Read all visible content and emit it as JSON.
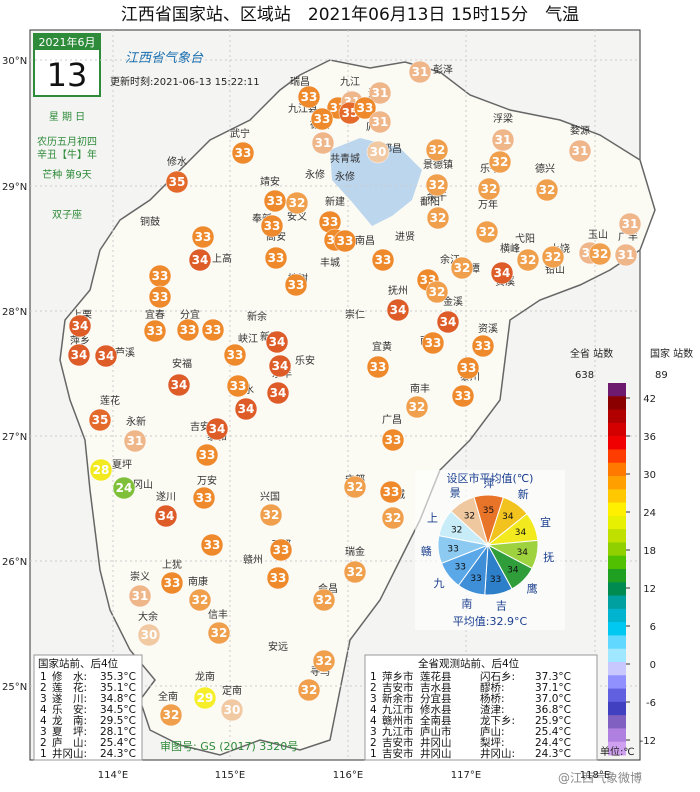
{
  "header": {
    "title": "江西省国家站、区域站　2021年06月13日 15时15分　气温"
  },
  "calendar": {
    "month": "2021年6月",
    "day": "13",
    "weekday": "星 期 日",
    "lunar": "农历五月初四",
    "lunar_year": "辛丑【牛】年",
    "solar_term": "芒种 第9天",
    "zodiac": "双子座"
  },
  "logo": {
    "name": "江西省气象台",
    "update": "更新时刻:2021-06-13 15:22:11"
  },
  "lat_labels": [
    "30°N",
    "29°N",
    "28°N",
    "27°N",
    "26°N",
    "25°N"
  ],
  "lon_labels": [
    "114°E",
    "115°E",
    "116°E",
    "117°E",
    "118°E"
  ],
  "marker_colors": [
    {
      "value": 24,
      "color": "#7fbf3a"
    },
    {
      "value": 25,
      "color": "#8cc63f"
    },
    {
      "value": 28,
      "color": "#f2ea1e"
    },
    {
      "value": 29,
      "color": "#f5ee28"
    },
    {
      "value": 30,
      "color": "#f1c9a2"
    },
    {
      "value": 31,
      "color": "#efb68a"
    },
    {
      "value": 32,
      "color": "#f0a04c"
    },
    {
      "value": 33,
      "color": "#ef8a2c"
    },
    {
      "value": 34,
      "color": "#de5c28"
    },
    {
      "value": 35,
      "color": "#e46a2c"
    }
  ],
  "stations": [
    31,
    31,
    33,
    33,
    31,
    35,
    33,
    33,
    31,
    31,
    30,
    33,
    32,
    31,
    32,
    31,
    35,
    32,
    32,
    32,
    33,
    32,
    33,
    33,
    32,
    31,
    33,
    33,
    32,
    33,
    33,
    33,
    33,
    32,
    34,
    32,
    32,
    31,
    32,
    31,
    34,
    33,
    33,
    33,
    32,
    34,
    34,
    33,
    33,
    33,
    34,
    33,
    34,
    33,
    34,
    34,
    33,
    34,
    33,
    34,
    33,
    33,
    34,
    33,
    32,
    34,
    35,
    34,
    33,
    33,
    31,
    28,
    24,
    33,
    32,
    33,
    34,
    32,
    32,
    33,
    33,
    33,
    32,
    33,
    31,
    32,
    32,
    30,
    32,
    32,
    32,
    29,
    32,
    30
  ],
  "places": [
    "彭泽",
    "湖口",
    "九江",
    "九江县",
    "瑞昌",
    "德安",
    "庐山",
    "都昌",
    "共青城",
    "星子",
    "修水",
    "武宁",
    "永修",
    "浮梁",
    "景德镇",
    "婺源",
    "鄱阳",
    "乐平",
    "万年",
    "德兴",
    "玉山",
    "上饶",
    "广丰",
    "铅山",
    "横峰",
    "弋阳",
    "贵溪",
    "余江",
    "鹰潭",
    "余干",
    "进贤",
    "南昌",
    "新建",
    "安义",
    "靖安",
    "奉新",
    "高安",
    "宜丰",
    "铜鼓",
    "万载",
    "上高",
    "丰城",
    "樟树",
    "新余",
    "分宜",
    "宜春",
    "萍乡",
    "芦溪",
    "上栗",
    "莲花",
    "安福",
    "吉安",
    "吉水",
    "永丰",
    "新干",
    "峡江",
    "乐安",
    "宜黄",
    "崇仁",
    "抚州",
    "金溪",
    "资溪",
    "黎川",
    "南城",
    "南丰",
    "广昌",
    "永新",
    "井冈山",
    "泰和",
    "遂川",
    "万安",
    "兴国",
    "宁都",
    "石城",
    "瑞金",
    "于都",
    "赣州",
    "上犹",
    "南康",
    "崇义",
    "大余",
    "信丰",
    "安远",
    "会昌",
    "寻乌",
    "定南",
    "龙南",
    "全南",
    "夏坪",
    "永修"
  ],
  "pie": {
    "title": "设区市平均值(℃)",
    "average": "平均值:32.9°C",
    "slices": [
      {
        "name": "萍",
        "value": 35,
        "color": "#e8742a"
      },
      {
        "name": "新",
        "value": 34,
        "color": "#f2c21e"
      },
      {
        "name": "宜",
        "value": 34,
        "color": "#f2ea1e"
      },
      {
        "name": "抚",
        "value": 34,
        "color": "#9fd23f"
      },
      {
        "name": "鹰",
        "value": 34,
        "color": "#2f9e3a"
      },
      {
        "name": "吉",
        "value": 33,
        "color": "#2c7fc8"
      },
      {
        "name": "南",
        "value": 33,
        "color": "#3f8fd8"
      },
      {
        "name": "九",
        "value": 33,
        "color": "#5aa8e8"
      },
      {
        "name": "赣",
        "value": 33,
        "color": "#8ccaf2"
      },
      {
        "name": "上",
        "value": 32,
        "color": "#c8ecf8"
      },
      {
        "name": "景",
        "value": 32,
        "color": "#f0c8a0"
      }
    ]
  },
  "colorbar": {
    "header_all": "全省\n站数",
    "count_all": "638",
    "header_nat": "国家\n站数",
    "count_nat": "89",
    "unit": "单位:℃",
    "ticks": [
      42,
      36,
      30,
      24,
      18,
      12,
      6,
      0,
      -6,
      -12
    ],
    "colors": [
      "#6e1a6e",
      "#8a0000",
      "#b00000",
      "#d40000",
      "#f00000",
      "#ff3c00",
      "#ff7800",
      "#ffa000",
      "#ffc800",
      "#fff000",
      "#e6f000",
      "#c0e000",
      "#90d000",
      "#50c000",
      "#20a020",
      "#008c50",
      "#00a0a0",
      "#00b4d0",
      "#00c8f0",
      "#60d8ff",
      "#a0e8ff",
      "#c8c8ff",
      "#9090ff",
      "#6060e0",
      "#4040c0",
      "#8060c0",
      "#b080e0",
      "#d0a0f0"
    ]
  },
  "national_rank": {
    "title": "国家站前、后4位",
    "rows": [
      [
        "1",
        "修　水:",
        "35.3°C"
      ],
      [
        "2",
        "莲　花:",
        "35.1°C"
      ],
      [
        "3",
        "遂　川:",
        "34.8°C"
      ],
      [
        "4",
        "乐　安:",
        "34.5°C"
      ],
      [
        "4",
        "龙　南:",
        "29.5°C"
      ],
      [
        "3",
        "夏　坪:",
        "28.1°C"
      ],
      [
        "2",
        "庐　山:",
        "25.4°C"
      ],
      [
        "1",
        "井冈山:",
        "24.3°C"
      ]
    ]
  },
  "province_rank": {
    "title": "全省观测站前、后4位",
    "rows": [
      [
        "1",
        "萍乡市",
        "莲花县",
        "闪石乡:",
        "37.3°C"
      ],
      [
        "2",
        "吉安市",
        "吉水县",
        "醪桥:",
        "37.1°C"
      ],
      [
        "3",
        "新余市",
        "分宜县",
        "杨桥:",
        "37.0°C"
      ],
      [
        "4",
        "九江市",
        "修水县",
        "渣津:",
        "36.8°C"
      ],
      [
        "4",
        "赣州市",
        "全南县",
        "龙下乡:",
        "25.9°C"
      ],
      [
        "3",
        "九江市",
        "庐山市",
        "庐山:",
        "25.4°C"
      ],
      [
        "2",
        "吉安市",
        "井冈山",
        "梨坪:",
        "24.4°C"
      ],
      [
        "1",
        "吉安市",
        "井冈山",
        "井冈山:",
        "24.3°C"
      ]
    ]
  },
  "review_no": "审图号: GS (2017) 3320号",
  "watermark": "@江西气象微博"
}
